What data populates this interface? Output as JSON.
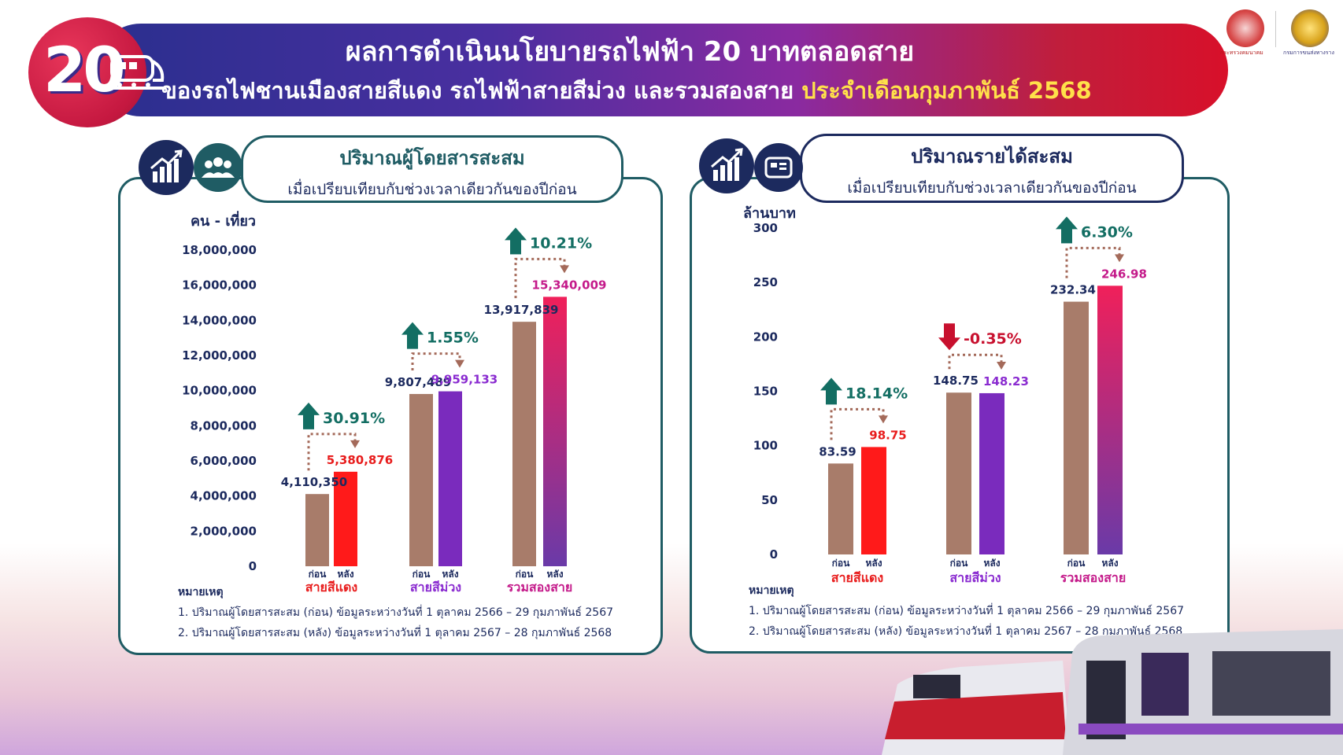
{
  "header": {
    "badge": "20",
    "title_line1": "ผลการดำเนินนโยบายรถไฟฟ้า 20 บาทตลอดสาย",
    "title_line2_main": "ของรถไฟชานเมืองสายสีแดง รถไฟฟ้าสายสีม่วง และรวมสองสาย ",
    "title_line2_highlight": "ประจำเดือนกุมภาพันธ์ 2568",
    "logo_left_caption": "กระทรวงคมนาคม",
    "logo_right_caption": "กรมการขนส่งทางราง"
  },
  "left_panel": {
    "title": "ปริมาณผู้โดยสารสะสม",
    "subtitle": "เมื่อเปรียบเทียบกับช่วงเวลาเดียวกันของปีก่อน",
    "icons": [
      "chart-up-icon",
      "people-icon"
    ],
    "note_heading": "หมายเหตุ",
    "notes": [
      "1. ปริมาณผู้โดยสารสะสม (ก่อน) ข้อมูลระหว่างวันที่ 1 ตุลาคม 2566  – 29 กุมภาพันธ์ 2567",
      "2. ปริมาณผู้โดยสารสะสม (หลัง)  ข้อมูลระหว่างวันที่ 1 ตุลาคม 2567  – 28 กุมภาพันธ์ 2568"
    ]
  },
  "right_panel": {
    "title": "ปริมาณรายได้สะสม",
    "subtitle": "เมื่อเปรียบเทียบกับช่วงเวลาเดียวกันของปีก่อน",
    "icons": [
      "chart-up-icon",
      "ticket-icon"
    ],
    "note_heading": "หมายเหตุ",
    "notes": [
      "1. ปริมาณผู้โดยสารสะสม (ก่อน) ข้อมูลระหว่างวันที่ 1 ตุลาคม 2566  – 29 กุมภาพันธ์ 2567",
      "2. ปริมาณผู้โดยสารสะสม (หลัง)  ข้อมูลระหว่างวันที่ 1 ตุลาคม 2567  – 28 กุมภาพันธ์ 2568"
    ]
  },
  "colors": {
    "before": "#a87c6a",
    "red_line": "#ff1a1a",
    "purple_line": "#7a2bbd",
    "combined_top": "#f0205a",
    "combined_bottom": "#6a3aa8",
    "up_arrow": "#136e63",
    "down_arrow": "#c8102e",
    "dotted": "#a46a5a",
    "axis_text": "#1c2a5e",
    "red_label": "#e81c1c",
    "purple_label": "#8a2bd0",
    "combined_label": "#c41a8a"
  },
  "chart_data": [
    {
      "type": "bar",
      "title": "ปริมาณผู้โดยสารสะสม",
      "ylabel": "คน - เที่ยว",
      "ylim": [
        0,
        18000000
      ],
      "yticks": [
        "0",
        "2,000,000",
        "4,000,000",
        "6,000,000",
        "8,000,000",
        "10,000,000",
        "12,000,000",
        "14,000,000",
        "16,000,000",
        "18,000,000"
      ],
      "sub_labels": [
        "ก่อน",
        "หลัง"
      ],
      "categories": [
        "สายสีแดง",
        "สายสีม่วง",
        "รวมสองสาย"
      ],
      "series": [
        {
          "name": "ก่อน",
          "values": [
            4110350,
            9807489,
            13917839
          ],
          "labels": [
            "4,110,350",
            "9,807,489",
            "13,917,839"
          ]
        },
        {
          "name": "หลัง",
          "values": [
            5380876,
            9959133,
            15340009
          ],
          "labels": [
            "5,380,876",
            "9,959,133",
            "15,340,009"
          ]
        }
      ],
      "changes": [
        "30.91%",
        "1.55%",
        "10.21%"
      ],
      "change_direction": [
        "up",
        "up",
        "up"
      ]
    },
    {
      "type": "bar",
      "title": "ปริมาณรายได้สะสม",
      "ylabel": "ล้านบาท",
      "ylim": [
        0,
        300
      ],
      "yticks": [
        "0",
        "50",
        "100",
        "150",
        "200",
        "250",
        "300"
      ],
      "sub_labels": [
        "ก่อน",
        "หลัง"
      ],
      "categories": [
        "สายสีแดง",
        "สายสีม่วง",
        "รวมสองสาย"
      ],
      "series": [
        {
          "name": "ก่อน",
          "values": [
            83.59,
            148.75,
            232.34
          ],
          "labels": [
            "83.59",
            "148.75",
            "232.34"
          ]
        },
        {
          "name": "หลัง",
          "values": [
            98.75,
            148.23,
            246.98
          ],
          "labels": [
            "98.75",
            "148.23",
            "246.98"
          ]
        }
      ],
      "changes": [
        "18.14%",
        "-0.35%",
        "6.30%"
      ],
      "change_direction": [
        "up",
        "down",
        "up"
      ]
    }
  ]
}
